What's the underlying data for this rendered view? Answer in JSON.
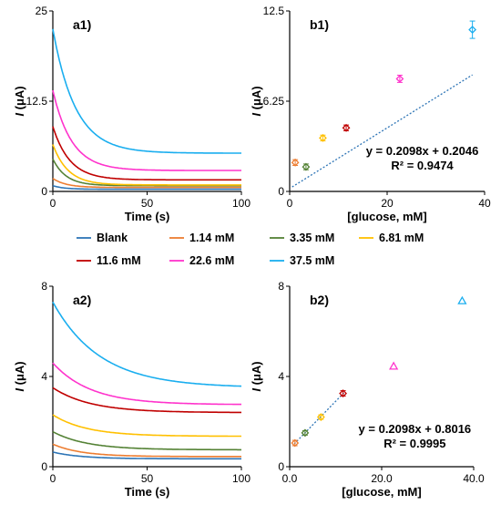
{
  "colors": {
    "Blank": "#2E75B6",
    "1.14 mM": "#ED7D31",
    "3.35 mM": "#548235",
    "6.81 mM": "#FFC000",
    "11.6 mM": "#C00000",
    "22.6 mM": "#FF33CC",
    "37.5 mM": "#1AAEEF",
    "fit": "#2E75B6"
  },
  "legend": {
    "entries": [
      "Blank",
      "1.14 mM",
      "3.35 mM",
      "6.81 mM",
      "11.6 mM",
      "22.6 mM",
      "37.5 mM"
    ]
  },
  "chart_data": [
    {
      "id": "a1",
      "type": "line",
      "panel_label": "a1)",
      "xlabel": "Time (s)",
      "ylabel_italic": "I",
      "ylabel_rest": " (μA)",
      "xlim": [
        0,
        100
      ],
      "ylim": [
        0,
        25
      ],
      "xticks": [
        "0",
        "50",
        "100"
      ],
      "yticks": [
        "0",
        "12.5",
        "25"
      ],
      "series": [
        {
          "name": "Blank",
          "y0": 0.8,
          "yinf": 0.3,
          "tau": 6
        },
        {
          "name": "1.14 mM",
          "y0": 1.8,
          "yinf": 0.55,
          "tau": 7
        },
        {
          "name": "3.35 mM",
          "y0": 4.5,
          "yinf": 0.8,
          "tau": 7
        },
        {
          "name": "6.81 mM",
          "y0": 6.5,
          "yinf": 0.9,
          "tau": 8
        },
        {
          "name": "11.6 mM",
          "y0": 9.0,
          "yinf": 1.6,
          "tau": 9
        },
        {
          "name": "22.6 mM",
          "y0": 14.0,
          "yinf": 2.9,
          "tau": 10
        },
        {
          "name": "37.5 mM",
          "y0": 22.5,
          "yinf": 5.3,
          "tau": 12
        }
      ]
    },
    {
      "id": "b1",
      "type": "scatter",
      "panel_label": "b1)",
      "xlabel": "[glucose, mM]",
      "ylabel_italic": "I",
      "ylabel_rest": " (μA)",
      "xlim": [
        0,
        40
      ],
      "ylim": [
        0,
        12.5
      ],
      "xticks": [
        "0",
        "20",
        "40"
      ],
      "yticks": [
        "0",
        "6.25",
        "12.5"
      ],
      "marker": "diamond",
      "points": [
        {
          "name": "1.14 mM",
          "x": 1.14,
          "y": 2.0,
          "err": 0.2
        },
        {
          "name": "3.35 mM",
          "x": 3.35,
          "y": 1.7,
          "err": 0.2
        },
        {
          "name": "6.81 mM",
          "x": 6.81,
          "y": 3.7,
          "err": 0.2
        },
        {
          "name": "11.6 mM",
          "x": 11.6,
          "y": 4.4,
          "err": 0.2
        },
        {
          "name": "22.6 mM",
          "x": 22.6,
          "y": 7.8,
          "err": 0.25
        },
        {
          "name": "37.5 mM",
          "x": 37.5,
          "y": 11.2,
          "err": 0.6
        }
      ],
      "fit": {
        "slope": 0.2098,
        "intercept": 0.2046,
        "x_range": [
          0.5,
          37.5
        ]
      },
      "equation": "y = 0.2098x + 0.2046",
      "r2": "R² = 0.9474"
    },
    {
      "id": "a2",
      "type": "line",
      "panel_label": "a2)",
      "xlabel": "Time (s)",
      "ylabel_italic": "I",
      "ylabel_rest": " (μA)",
      "xlim": [
        0,
        100
      ],
      "ylim": [
        0,
        8
      ],
      "xticks": [
        "0",
        "50",
        "100"
      ],
      "yticks": [
        "0",
        "4",
        "8"
      ],
      "series": [
        {
          "name": "Blank",
          "y0": 0.65,
          "yinf": 0.35,
          "tau": 15
        },
        {
          "name": "1.14 mM",
          "y0": 1.0,
          "yinf": 0.45,
          "tau": 15
        },
        {
          "name": "3.35 mM",
          "y0": 1.55,
          "yinf": 0.75,
          "tau": 18
        },
        {
          "name": "6.81 mM",
          "y0": 2.3,
          "yinf": 1.35,
          "tau": 18
        },
        {
          "name": "11.6 mM",
          "y0": 3.5,
          "yinf": 2.4,
          "tau": 20
        },
        {
          "name": "22.6 mM",
          "y0": 4.6,
          "yinf": 2.75,
          "tau": 20
        },
        {
          "name": "37.5 mM",
          "y0": 7.3,
          "yinf": 3.5,
          "tau": 25
        }
      ]
    },
    {
      "id": "b2",
      "type": "scatter",
      "panel_label": "b2)",
      "xlabel": "[glucose, mM]",
      "ylabel_italic": "I",
      "ylabel_rest": " (μA)",
      "xlim": [
        0,
        40
      ],
      "ylim": [
        0,
        8
      ],
      "xticks": [
        "0.0",
        "20.0",
        "40.0"
      ],
      "yticks": [
        "0",
        "4",
        "8"
      ],
      "marker": "diamond",
      "points": [
        {
          "name": "1.14 mM",
          "x": 1.14,
          "y": 1.05,
          "err": 0.12,
          "marker": "diamond"
        },
        {
          "name": "3.35 mM",
          "x": 3.35,
          "y": 1.5,
          "err": 0.1,
          "marker": "diamond"
        },
        {
          "name": "6.81 mM",
          "x": 6.81,
          "y": 2.2,
          "err": 0.1,
          "marker": "diamond"
        },
        {
          "name": "11.6 mM",
          "x": 11.6,
          "y": 3.25,
          "err": 0.12,
          "marker": "diamond"
        },
        {
          "name": "22.6 mM",
          "x": 22.6,
          "y": 4.45,
          "err": 0,
          "marker": "triangle"
        },
        {
          "name": "37.5 mM",
          "x": 37.5,
          "y": 7.35,
          "err": 0,
          "marker": "triangle"
        }
      ],
      "fit": {
        "slope": 0.2098,
        "intercept": 0.8016,
        "x_range": [
          1.0,
          12.0
        ]
      },
      "equation": "y = 0.2098x + 0.8016",
      "r2": "R² = 0.9995"
    }
  ]
}
